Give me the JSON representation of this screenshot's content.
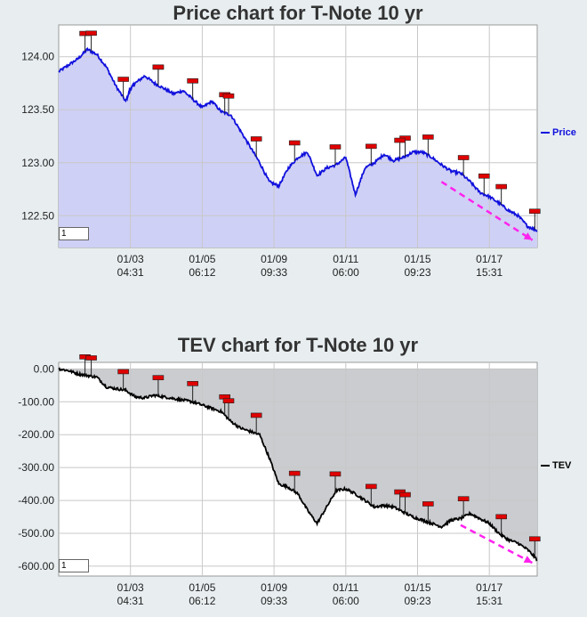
{
  "chart_data": [
    {
      "type": "area",
      "title": "Price chart for T-Note 10 yr",
      "series": [
        {
          "name": "Price",
          "color": "#1010dd",
          "fill": "#cfd0f5",
          "x": [
            0,
            2,
            4,
            6,
            8,
            10,
            12,
            14,
            15,
            16,
            18,
            20,
            22,
            24,
            26,
            28,
            30,
            32,
            34,
            36,
            38,
            40,
            42,
            44,
            46,
            48,
            50,
            52,
            54,
            56,
            58,
            60,
            62,
            64,
            66,
            68,
            70,
            72,
            74,
            76,
            78,
            80,
            82,
            84,
            86,
            88,
            90,
            92,
            94,
            96,
            98,
            100
          ],
          "values": [
            123.86,
            123.92,
            123.98,
            124.07,
            124.02,
            123.9,
            123.72,
            123.58,
            123.7,
            123.75,
            123.82,
            123.75,
            123.7,
            123.65,
            123.68,
            123.6,
            123.52,
            123.58,
            123.48,
            123.45,
            123.3,
            123.15,
            123.0,
            122.82,
            122.78,
            122.95,
            123.05,
            123.1,
            122.88,
            122.95,
            122.98,
            123.05,
            122.7,
            122.95,
            123.0,
            123.08,
            123.02,
            123.05,
            123.1,
            123.1,
            123.05,
            122.98,
            122.92,
            122.9,
            122.82,
            122.72,
            122.68,
            122.62,
            122.55,
            122.5,
            122.4,
            122.36
          ]
        }
      ],
      "x_ticks": [
        {
          "x": 15,
          "date": "01/03",
          "time": "04:31"
        },
        {
          "x": 30,
          "date": "01/05",
          "time": "06:12"
        },
        {
          "x": 45,
          "date": "01/09",
          "time": "09:33"
        },
        {
          "x": 60,
          "date": "01/11",
          "time": "06:00"
        },
        {
          "x": 75,
          "date": "01/15",
          "time": "09:23"
        },
        {
          "x": 90,
          "date": "01/17",
          "time": "15:31"
        }
      ],
      "y_ticks": [
        {
          "v": 124.0,
          "label": "124.00"
        },
        {
          "v": 123.5,
          "label": "123.50"
        },
        {
          "v": 123.0,
          "label": "123.00"
        },
        {
          "v": 122.5,
          "label": "122.50"
        }
      ],
      "ylim": [
        122.2,
        124.3
      ],
      "xlim": [
        0,
        100
      ],
      "grid": true,
      "legend_position": "right",
      "markers_x": [
        5.5,
        6.8,
        13.5,
        20.8,
        20.8,
        28,
        34.7,
        35.5,
        41.3,
        49.3,
        57.8,
        65.3,
        72.4,
        71.3,
        77.2,
        84.6,
        88.9,
        92.5,
        99.5
      ],
      "trend_arrow": {
        "from": [
          80,
          122.82
        ],
        "to": [
          99,
          122.27
        ]
      },
      "input_value": "1"
    },
    {
      "type": "area",
      "title": "TEV chart for T-Note 10 yr",
      "series": [
        {
          "name": "TEV",
          "color": "#000000",
          "fill": "#cacccf",
          "x": [
            0,
            2,
            4,
            6,
            8,
            10,
            12,
            14,
            16,
            18,
            20,
            22,
            24,
            26,
            28,
            30,
            32,
            34,
            36,
            38,
            40,
            42,
            44,
            46,
            48,
            50,
            52,
            54,
            56,
            58,
            60,
            62,
            64,
            66,
            68,
            70,
            72,
            74,
            76,
            78,
            80,
            82,
            84,
            86,
            88,
            90,
            92,
            94,
            96,
            98,
            100
          ],
          "values": [
            0,
            -5,
            -15,
            -20,
            -25,
            -55,
            -60,
            -65,
            -85,
            -88,
            -80,
            -85,
            -90,
            -95,
            -100,
            -110,
            -120,
            -130,
            -160,
            -180,
            -190,
            -200,
            -270,
            -350,
            -360,
            -380,
            -430,
            -470,
            -420,
            -370,
            -365,
            -380,
            -400,
            -420,
            -415,
            -420,
            -435,
            -450,
            -460,
            -470,
            -480,
            -460,
            -455,
            -440,
            -455,
            -470,
            -500,
            -520,
            -530,
            -550,
            -580
          ]
        }
      ],
      "x_ticks": [
        {
          "x": 15,
          "date": "01/03",
          "time": "04:31"
        },
        {
          "x": 30,
          "date": "01/05",
          "time": "06:12"
        },
        {
          "x": 45,
          "date": "01/09",
          "time": "09:33"
        },
        {
          "x": 60,
          "date": "01/11",
          "time": "06:00"
        },
        {
          "x": 75,
          "date": "01/15",
          "time": "09:23"
        },
        {
          "x": 90,
          "date": "01/17",
          "time": "15:31"
        }
      ],
      "y_ticks": [
        {
          "v": 0,
          "label": "0.00"
        },
        {
          "v": -100,
          "label": "-100.00"
        },
        {
          "v": -200,
          "label": "-200.00"
        },
        {
          "v": -300,
          "label": "-300.00"
        },
        {
          "v": -400,
          "label": "-400.00"
        },
        {
          "v": -500,
          "label": "-500.00"
        },
        {
          "v": -600,
          "label": "-600.00"
        }
      ],
      "ylim": [
        -630,
        20
      ],
      "xlim": [
        0,
        100
      ],
      "grid": true,
      "legend_position": "right",
      "markers_x": [
        5.5,
        6.8,
        13.5,
        20.8,
        28,
        34.7,
        35.5,
        41.3,
        49.3,
        57.8,
        65.3,
        71.3,
        72.4,
        77.2,
        84.6,
        92.5,
        99.5
      ],
      "trend_arrow": {
        "from": [
          84,
          -475
        ],
        "to": [
          99,
          -590
        ]
      },
      "input_value": "1"
    }
  ]
}
